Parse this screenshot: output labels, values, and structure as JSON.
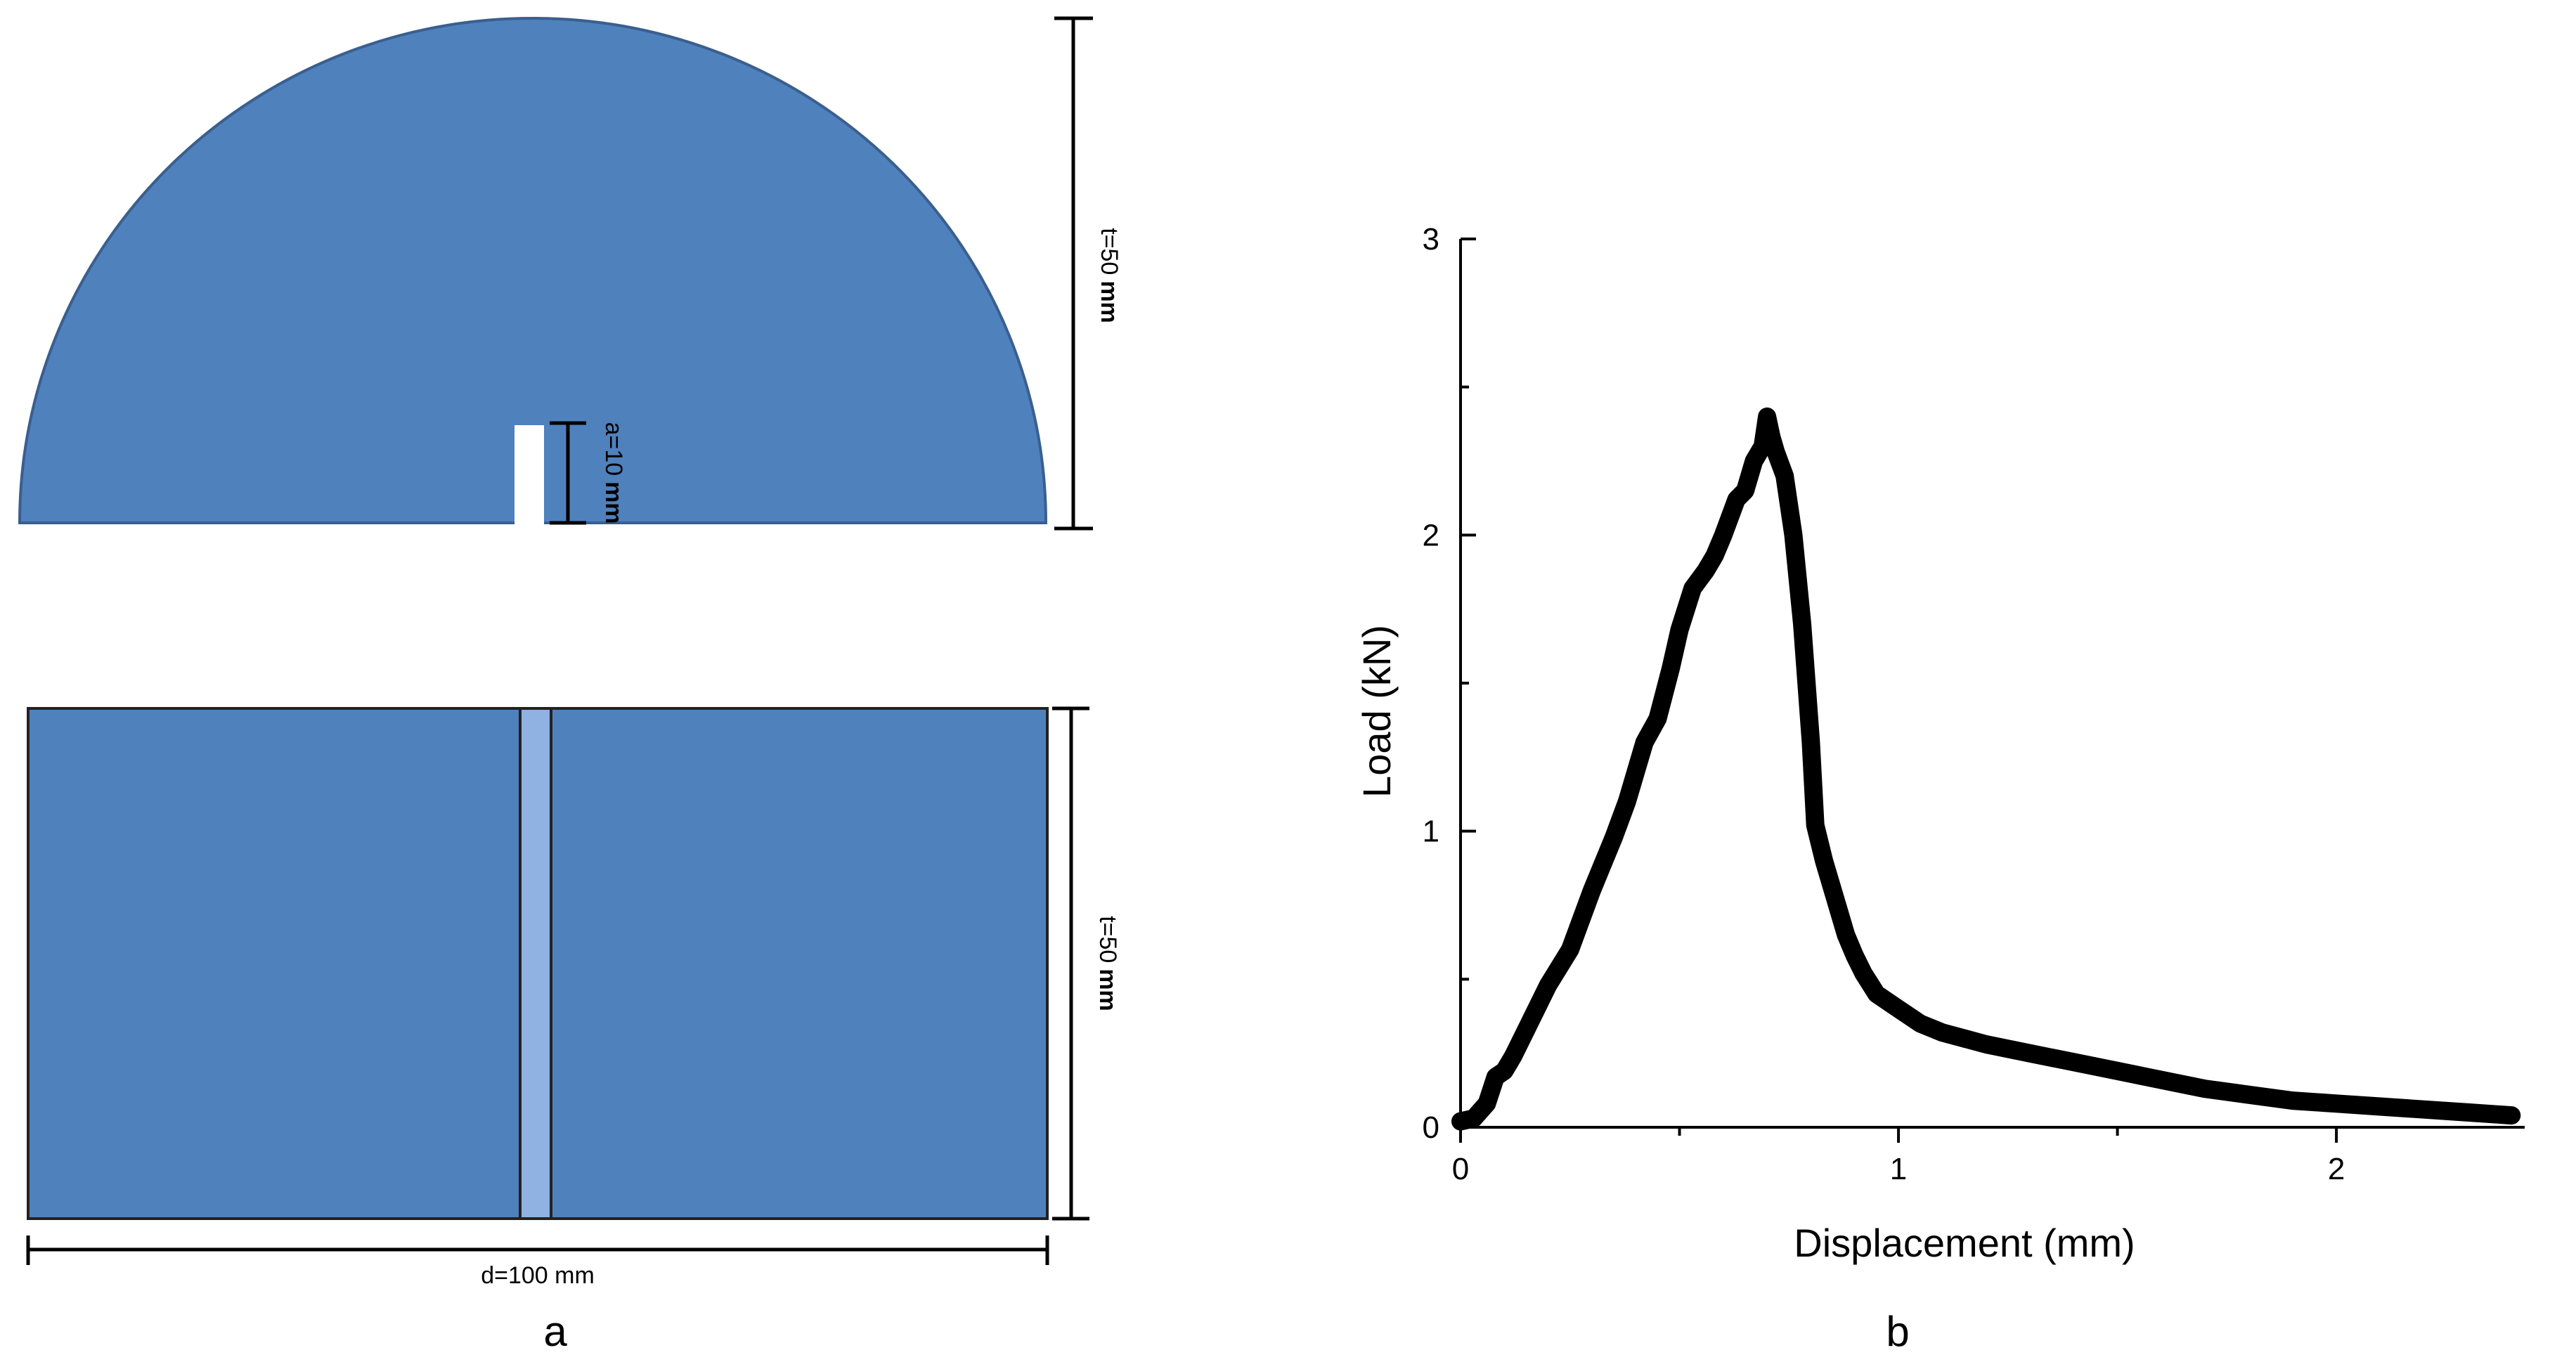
{
  "colors": {
    "shape_fill": "#4f81bd",
    "shape_stroke": "#3a5f8f",
    "notch_band": "#8fb2e2",
    "curve": "#000000",
    "axis": "#000000"
  },
  "panel_a": {
    "label": "a",
    "semicircle": {
      "thickness_value": "t=50",
      "thickness_unit": "mm",
      "notch_value": "a=10",
      "notch_unit": "mm"
    },
    "rectangle": {
      "thickness_value": "t=50",
      "thickness_unit": "mm",
      "diameter_label": "d=100 mm"
    }
  },
  "panel_b": {
    "label": "b"
  },
  "chart_data": {
    "type": "line",
    "title": "",
    "xlabel": "Displacement (mm)",
    "ylabel": "Load (kN)",
    "xlim": [
      0,
      2.4
    ],
    "ylim": [
      0,
      3
    ],
    "xticks": [
      0,
      1,
      2
    ],
    "yticks": [
      0,
      1,
      2,
      3
    ],
    "grid": false,
    "legend": "none",
    "series": [
      {
        "x": [
          0,
          0.03,
          0.06,
          0.08,
          0.1,
          0.12,
          0.15,
          0.2,
          0.25,
          0.3,
          0.35,
          0.38,
          0.42,
          0.45,
          0.48,
          0.5,
          0.53,
          0.56,
          0.58,
          0.6,
          0.63,
          0.65,
          0.67,
          0.69,
          0.7,
          0.71,
          0.72,
          0.74,
          0.76,
          0.78,
          0.8,
          0.81,
          0.83,
          0.85,
          0.88,
          0.9,
          0.92,
          0.95,
          1.0,
          1.05,
          1.1,
          1.15,
          1.2,
          1.3,
          1.4,
          1.5,
          1.6,
          1.7,
          1.8,
          1.9,
          2.0,
          2.1,
          2.2,
          2.3,
          2.4
        ],
        "y": [
          0.02,
          0.03,
          0.08,
          0.17,
          0.19,
          0.24,
          0.33,
          0.48,
          0.6,
          0.8,
          0.98,
          1.1,
          1.3,
          1.38,
          1.55,
          1.68,
          1.82,
          1.88,
          1.93,
          2.0,
          2.12,
          2.15,
          2.25,
          2.3,
          2.4,
          2.33,
          2.28,
          2.2,
          2.0,
          1.7,
          1.3,
          1.02,
          0.9,
          0.8,
          0.65,
          0.58,
          0.52,
          0.45,
          0.4,
          0.35,
          0.32,
          0.3,
          0.28,
          0.25,
          0.22,
          0.19,
          0.16,
          0.13,
          0.11,
          0.09,
          0.08,
          0.07,
          0.06,
          0.05,
          0.04
        ]
      }
    ]
  }
}
